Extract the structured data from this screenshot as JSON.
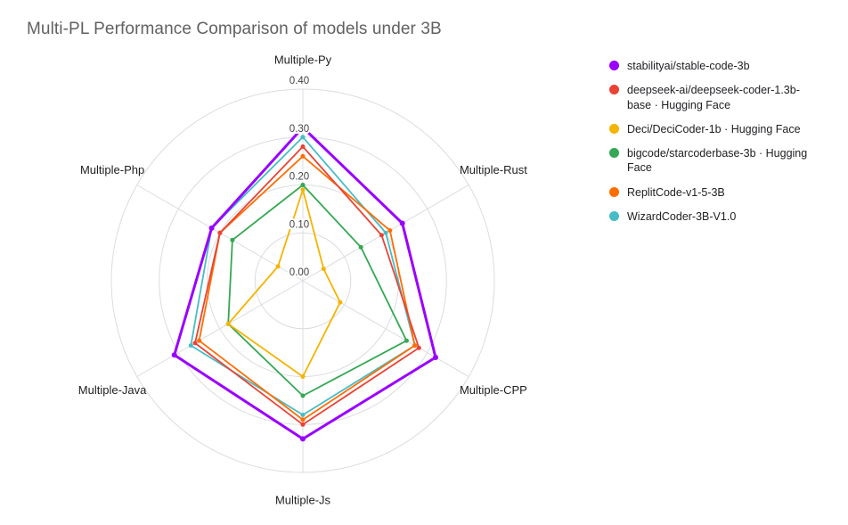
{
  "title": "Multi-PL Performance Comparison of models under 3B",
  "chart_data": {
    "type": "radar",
    "axes": [
      "Multiple-Py",
      "Multiple-Rust",
      "Multiple-CPP",
      "Multiple-Js",
      "Multiple-Java",
      "Multiple-Php"
    ],
    "rmax": 0.4,
    "ticks": [
      0,
      0.1,
      0.2,
      0.3,
      0.4
    ],
    "tick_labels": [
      "0.00",
      "0.10",
      "0.20",
      "0.30",
      "0.40"
    ],
    "grid": true,
    "legend_position": "right",
    "grid_color": "#dadce0",
    "series": [
      {
        "name": "stabilityai/stable-code-3b",
        "color": "#9900ff",
        "values": [
          0.32,
          0.24,
          0.32,
          0.33,
          0.31,
          0.22
        ]
      },
      {
        "name": "deepseek-ai/deepseek-coder-1.3b-base · Hugging Face",
        "color": "#ea4335",
        "values": [
          0.28,
          0.19,
          0.28,
          0.3,
          0.26,
          0.2
        ]
      },
      {
        "name": "Deci/DeciCoder-1b · Hugging Face",
        "color": "#f4b400",
        "values": [
          0.19,
          0.05,
          0.09,
          0.2,
          0.18,
          0.06
        ]
      },
      {
        "name": "bigcode/starcoderbase-3b · Hugging Face",
        "color": "#34a853",
        "values": [
          0.2,
          0.14,
          0.25,
          0.24,
          0.18,
          0.17
        ]
      },
      {
        "name": "ReplitCode-v1-5-3B",
        "color": "#ff6d01",
        "values": [
          0.26,
          0.21,
          0.27,
          0.29,
          0.25,
          0.2
        ]
      },
      {
        "name": "WizardCoder-3B-V1.0",
        "color": "#46bdc6",
        "values": [
          0.3,
          0.2,
          0.27,
          0.28,
          0.27,
          0.22
        ]
      }
    ]
  }
}
